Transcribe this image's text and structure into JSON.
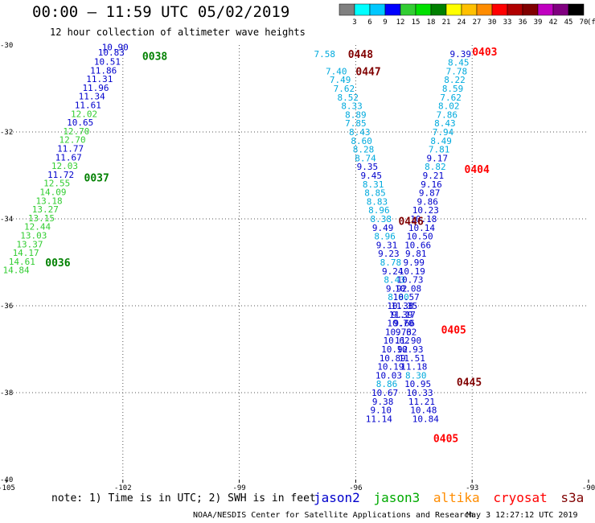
{
  "title": "00:00 – 11:59 UTC 05/02/2019",
  "subtitle": "12 hour collection of altimeter wave heights",
  "note": "note:  1) Time is in UTC; 2) SWH is in feet",
  "credit": "NOAA/NESDIS Center for Satellite Applications and Research",
  "timestamp": "May  3 12:27:12 UTC 2019",
  "colorscale": {
    "ticks": [
      "3",
      "6",
      "9",
      "12",
      "15",
      "18",
      "21",
      "24",
      "27",
      "30",
      "33",
      "36",
      "39",
      "42",
      "45",
      "70"
    ],
    "unit": "(ft)",
    "colors": [
      "#808080",
      "#00ffff",
      "#00c8ff",
      "#0000ff",
      "#32cd32",
      "#00e000",
      "#008000",
      "#ffff00",
      "#ffc000",
      "#ff8c00",
      "#ff0000",
      "#b00000",
      "#800000",
      "#c000c0",
      "#800080",
      "#000000"
    ]
  },
  "satellites": [
    {
      "name": "jason2",
      "color": "#0000cc"
    },
    {
      "name": "jason3",
      "color": "#00aa00"
    },
    {
      "name": "altika",
      "color": "#ff8c00"
    },
    {
      "name": "cryosat",
      "color": "#ff0000"
    },
    {
      "name": "s3a",
      "color": "#800000"
    }
  ],
  "chart_data": {
    "type": "scatter",
    "xlim": [
      -105,
      -90
    ],
    "ylim": [
      -40,
      -30
    ],
    "x_ticks": [
      -105,
      -102,
      -99,
      -96,
      -93,
      -90
    ],
    "y_ticks": [
      -30,
      -32,
      -34,
      -36,
      -38,
      -40
    ],
    "x_tick_labels": [
      "-105",
      "-102",
      "-99",
      "-96",
      "-93",
      "-90"
    ],
    "y_tick_labels": [
      "-30",
      "-32",
      "-34",
      "-36",
      "-38",
      "-40"
    ],
    "grid": true,
    "time_labels": [
      {
        "text": "0038",
        "lon": -101.5,
        "lat": -30.25,
        "color": "#008000"
      },
      {
        "text": "0037",
        "lon": -103.0,
        "lat": -33.05,
        "color": "#008000"
      },
      {
        "text": "0036",
        "lon": -104.0,
        "lat": -35.0,
        "color": "#008000"
      },
      {
        "text": "0448",
        "lon": -96.2,
        "lat": -30.2,
        "color": "#800000"
      },
      {
        "text": "0447",
        "lon": -96.0,
        "lat": -30.6,
        "color": "#800000"
      },
      {
        "text": "0446",
        "lon": -94.9,
        "lat": -34.05,
        "color": "#800000"
      },
      {
        "text": "0445",
        "lon": -93.4,
        "lat": -37.75,
        "color": "#800000"
      },
      {
        "text": "0403",
        "lon": -93.0,
        "lat": -30.15,
        "color": "#ff0000"
      },
      {
        "text": "0404",
        "lon": -93.2,
        "lat": -32.85,
        "color": "#ff0000"
      },
      {
        "text": "0405",
        "lon": -93.8,
        "lat": -36.55,
        "color": "#ff0000"
      },
      {
        "text": "0405",
        "lon": -94.0,
        "lat": -39.05,
        "color": "#ff0000"
      }
    ],
    "series": [
      {
        "name": "jason3",
        "points": [
          {
            "lon": -102.2,
            "lat": -30.05,
            "v": "10.90",
            "color": "#0000cc"
          },
          {
            "lon": -102.3,
            "lat": -30.17,
            "v": "10.83",
            "color": "#0000cc"
          },
          {
            "lon": -102.4,
            "lat": -30.38,
            "v": "10.51",
            "color": "#0000cc"
          },
          {
            "lon": -102.5,
            "lat": -30.58,
            "v": "11.86",
            "color": "#0000cc"
          },
          {
            "lon": -102.6,
            "lat": -30.78,
            "v": "11.31",
            "color": "#0000cc"
          },
          {
            "lon": -102.7,
            "lat": -30.98,
            "v": "11.96",
            "color": "#0000cc"
          },
          {
            "lon": -102.8,
            "lat": -31.18,
            "v": "11.34",
            "color": "#0000cc"
          },
          {
            "lon": -102.9,
            "lat": -31.38,
            "v": "11.61",
            "color": "#0000cc"
          },
          {
            "lon": -103.0,
            "lat": -31.58,
            "v": "12.02",
            "color": "#32cd32"
          },
          {
            "lon": -103.1,
            "lat": -31.78,
            "v": "10.65",
            "color": "#0000cc"
          },
          {
            "lon": -103.2,
            "lat": -31.98,
            "v": "12.70",
            "color": "#32cd32"
          },
          {
            "lon": -103.3,
            "lat": -32.18,
            "v": "12.70",
            "color": "#32cd32"
          },
          {
            "lon": -103.35,
            "lat": -32.38,
            "v": "11.77",
            "color": "#0000cc"
          },
          {
            "lon": -103.4,
            "lat": -32.58,
            "v": "11.67",
            "color": "#0000cc"
          },
          {
            "lon": -103.5,
            "lat": -32.78,
            "v": "12.03",
            "color": "#32cd32"
          },
          {
            "lon": -103.6,
            "lat": -32.98,
            "v": "11.72",
            "color": "#0000cc"
          },
          {
            "lon": -103.7,
            "lat": -33.18,
            "v": "12.55",
            "color": "#32cd32"
          },
          {
            "lon": -103.8,
            "lat": -33.38,
            "v": "14.09",
            "color": "#32cd32"
          },
          {
            "lon": -103.9,
            "lat": -33.58,
            "v": "13.18",
            "color": "#32cd32"
          },
          {
            "lon": -104.0,
            "lat": -33.78,
            "v": "13.27",
            "color": "#32cd32"
          },
          {
            "lon": -104.1,
            "lat": -33.98,
            "v": "13.15",
            "color": "#32cd32"
          },
          {
            "lon": -104.2,
            "lat": -34.18,
            "v": "12.44",
            "color": "#32cd32"
          },
          {
            "lon": -104.3,
            "lat": -34.38,
            "v": "13.03",
            "color": "#32cd32"
          },
          {
            "lon": -104.4,
            "lat": -34.58,
            "v": "13.37",
            "color": "#32cd32"
          },
          {
            "lon": -104.5,
            "lat": -34.78,
            "v": "14.17",
            "color": "#32cd32"
          },
          {
            "lon": -104.6,
            "lat": -34.98,
            "v": "14.61",
            "color": "#32cd32"
          },
          {
            "lon": -104.75,
            "lat": -35.18,
            "v": "14.84",
            "color": "#32cd32"
          }
        ]
      },
      {
        "name": "s3a",
        "points": [
          {
            "lon": -96.8,
            "lat": -30.2,
            "v": "7.58",
            "color": "#00aadd"
          },
          {
            "lon": -96.5,
            "lat": -30.6,
            "v": "7.40",
            "color": "#00aadd"
          },
          {
            "lon": -96.4,
            "lat": -30.8,
            "v": "7.49",
            "color": "#00aadd"
          },
          {
            "lon": -96.3,
            "lat": -31.0,
            "v": "7.62",
            "color": "#00aadd"
          },
          {
            "lon": -96.2,
            "lat": -31.2,
            "v": "8.52",
            "color": "#00aadd"
          },
          {
            "lon": -96.1,
            "lat": -31.4,
            "v": "8.33",
            "color": "#00aadd"
          },
          {
            "lon": -96.0,
            "lat": -31.6,
            "v": "8.89",
            "color": "#00aadd"
          },
          {
            "lon": -96.0,
            "lat": -31.8,
            "v": "7.85",
            "color": "#00aadd"
          },
          {
            "lon": -95.9,
            "lat": -32.0,
            "v": "8.43",
            "color": "#00aadd"
          },
          {
            "lon": -95.85,
            "lat": -32.2,
            "v": "8.60",
            "color": "#00aadd"
          },
          {
            "lon": -95.8,
            "lat": -32.4,
            "v": "8.28",
            "color": "#00aadd"
          },
          {
            "lon": -95.75,
            "lat": -32.6,
            "v": "8.74",
            "color": "#00aadd"
          },
          {
            "lon": -95.7,
            "lat": -32.8,
            "v": "9.35",
            "color": "#0000cc"
          },
          {
            "lon": -95.6,
            "lat": -33.0,
            "v": "9.45",
            "color": "#0000cc"
          },
          {
            "lon": -95.55,
            "lat": -33.2,
            "v": "8.31",
            "color": "#00aadd"
          },
          {
            "lon": -95.5,
            "lat": -33.4,
            "v": "8.85",
            "color": "#00aadd"
          },
          {
            "lon": -95.45,
            "lat": -33.6,
            "v": "8.83",
            "color": "#00aadd"
          },
          {
            "lon": -95.4,
            "lat": -33.8,
            "v": "8.96",
            "color": "#00aadd"
          },
          {
            "lon": -95.35,
            "lat": -34.0,
            "v": "8.38",
            "color": "#00aadd"
          },
          {
            "lon": -95.3,
            "lat": -34.2,
            "v": "9.49",
            "color": "#0000cc"
          },
          {
            "lon": -95.25,
            "lat": -34.4,
            "v": "8.96",
            "color": "#00aadd"
          },
          {
            "lon": -95.2,
            "lat": -34.6,
            "v": "9.31",
            "color": "#0000cc"
          },
          {
            "lon": -95.15,
            "lat": -34.8,
            "v": "9.23",
            "color": "#0000cc"
          },
          {
            "lon": -95.1,
            "lat": -35.0,
            "v": "8.78",
            "color": "#00aadd"
          },
          {
            "lon": -95.05,
            "lat": -35.2,
            "v": "9.24",
            "color": "#0000cc"
          },
          {
            "lon": -95.0,
            "lat": -35.4,
            "v": "8.43",
            "color": "#00aadd"
          },
          {
            "lon": -94.95,
            "lat": -35.6,
            "v": "9.92",
            "color": "#0000cc"
          },
          {
            "lon": -94.9,
            "lat": -35.8,
            "v": "8.80",
            "color": "#00aadd"
          },
          {
            "lon": -94.85,
            "lat": -36.0,
            "v": "10.38",
            "color": "#0000cc"
          },
          {
            "lon": -94.8,
            "lat": -36.2,
            "v": "9.39",
            "color": "#0000cc"
          },
          {
            "lon": -94.75,
            "lat": -36.4,
            "v": "9.66",
            "color": "#0000cc"
          },
          {
            "lon": -94.7,
            "lat": -36.6,
            "v": "9.62",
            "color": "#0000cc"
          },
          {
            "lon": -94.65,
            "lat": -36.8,
            "v": "11.90",
            "color": "#0000cc"
          },
          {
            "lon": -94.6,
            "lat": -37.0,
            "v": "10.93",
            "color": "#0000cc"
          },
          {
            "lon": -94.55,
            "lat": -37.2,
            "v": "11.51",
            "color": "#0000cc"
          },
          {
            "lon": -94.5,
            "lat": -37.4,
            "v": "11.18",
            "color": "#0000cc"
          },
          {
            "lon": -94.45,
            "lat": -37.6,
            "v": "8.30",
            "color": "#00aadd"
          },
          {
            "lon": -94.4,
            "lat": -37.8,
            "v": "10.95",
            "color": "#0000cc"
          },
          {
            "lon": -94.35,
            "lat": -38.0,
            "v": "10.33",
            "color": "#0000cc"
          },
          {
            "lon": -94.3,
            "lat": -38.2,
            "v": "11.21",
            "color": "#0000cc"
          },
          {
            "lon": -94.25,
            "lat": -38.4,
            "v": "10.48",
            "color": "#0000cc"
          },
          {
            "lon": -94.2,
            "lat": -38.6,
            "v": "10.84",
            "color": "#0000cc"
          }
        ]
      },
      {
        "name": "cryosat",
        "points": [
          {
            "lon": -93.3,
            "lat": -30.2,
            "v": "9.39",
            "color": "#0000cc"
          },
          {
            "lon": -93.35,
            "lat": -30.4,
            "v": "8.45",
            "color": "#00aadd"
          },
          {
            "lon": -93.4,
            "lat": -30.6,
            "v": "7.78",
            "color": "#00aadd"
          },
          {
            "lon": -93.45,
            "lat": -30.8,
            "v": "8.22",
            "color": "#00aadd"
          },
          {
            "lon": -93.5,
            "lat": -31.0,
            "v": "8.59",
            "color": "#00aadd"
          },
          {
            "lon": -93.55,
            "lat": -31.2,
            "v": "7.62",
            "color": "#00aadd"
          },
          {
            "lon": -93.6,
            "lat": -31.4,
            "v": "8.02",
            "color": "#00aadd"
          },
          {
            "lon": -93.65,
            "lat": -31.6,
            "v": "7.86",
            "color": "#00aadd"
          },
          {
            "lon": -93.7,
            "lat": -31.8,
            "v": "8.43",
            "color": "#00aadd"
          },
          {
            "lon": -93.75,
            "lat": -32.0,
            "v": "7.94",
            "color": "#00aadd"
          },
          {
            "lon": -93.8,
            "lat": -32.2,
            "v": "8.49",
            "color": "#00aadd"
          },
          {
            "lon": -93.85,
            "lat": -32.4,
            "v": "7.81",
            "color": "#00aadd"
          },
          {
            "lon": -93.9,
            "lat": -32.6,
            "v": "9.17",
            "color": "#0000cc"
          },
          {
            "lon": -93.95,
            "lat": -32.8,
            "v": "8.82",
            "color": "#00aadd"
          },
          {
            "lon": -94.0,
            "lat": -33.0,
            "v": "9.21",
            "color": "#0000cc"
          },
          {
            "lon": -94.05,
            "lat": -33.2,
            "v": "9.16",
            "color": "#0000cc"
          },
          {
            "lon": -94.1,
            "lat": -33.4,
            "v": "9.87",
            "color": "#0000cc"
          },
          {
            "lon": -94.15,
            "lat": -33.6,
            "v": "9.86",
            "color": "#0000cc"
          },
          {
            "lon": -94.2,
            "lat": -33.8,
            "v": "10.23",
            "color": "#0000cc"
          },
          {
            "lon": -94.25,
            "lat": -34.0,
            "v": "10.18",
            "color": "#0000cc"
          },
          {
            "lon": -94.3,
            "lat": -34.2,
            "v": "10.14",
            "color": "#0000cc"
          },
          {
            "lon": -94.35,
            "lat": -34.4,
            "v": "10.50",
            "color": "#0000cc"
          },
          {
            "lon": -94.4,
            "lat": -34.6,
            "v": "10.66",
            "color": "#0000cc"
          },
          {
            "lon": -94.45,
            "lat": -34.8,
            "v": "9.81",
            "color": "#0000cc"
          },
          {
            "lon": -94.5,
            "lat": -35.0,
            "v": "9.99",
            "color": "#0000cc"
          },
          {
            "lon": -94.55,
            "lat": -35.2,
            "v": "10.19",
            "color": "#0000cc"
          },
          {
            "lon": -94.6,
            "lat": -35.4,
            "v": "10.73",
            "color": "#0000cc"
          },
          {
            "lon": -94.65,
            "lat": -35.6,
            "v": "10.08",
            "color": "#0000cc"
          },
          {
            "lon": -94.7,
            "lat": -35.8,
            "v": "10.57",
            "color": "#0000cc"
          },
          {
            "lon": -94.75,
            "lat": -36.0,
            "v": "11.35",
            "color": "#0000cc"
          },
          {
            "lon": -94.8,
            "lat": -36.2,
            "v": "11.17",
            "color": "#0000cc"
          },
          {
            "lon": -94.85,
            "lat": -36.4,
            "v": "10.70",
            "color": "#0000cc"
          },
          {
            "lon": -94.9,
            "lat": -36.6,
            "v": "10.73",
            "color": "#0000cc"
          },
          {
            "lon": -94.95,
            "lat": -36.8,
            "v": "10.62",
            "color": "#0000cc"
          },
          {
            "lon": -95.0,
            "lat": -37.0,
            "v": "10.92",
            "color": "#0000cc"
          },
          {
            "lon": -95.05,
            "lat": -37.2,
            "v": "10.89",
            "color": "#0000cc"
          },
          {
            "lon": -95.1,
            "lat": -37.4,
            "v": "10.19",
            "color": "#0000cc"
          },
          {
            "lon": -95.15,
            "lat": -37.6,
            "v": "10.03",
            "color": "#0000cc"
          },
          {
            "lon": -95.2,
            "lat": -37.8,
            "v": "8.86",
            "color": "#00aadd"
          },
          {
            "lon": -95.25,
            "lat": -38.0,
            "v": "10.67",
            "color": "#0000cc"
          },
          {
            "lon": -95.3,
            "lat": -38.2,
            "v": "9.38",
            "color": "#0000cc"
          },
          {
            "lon": -95.35,
            "lat": -38.4,
            "v": "9.10",
            "color": "#0000cc"
          },
          {
            "lon": -95.4,
            "lat": -38.6,
            "v": "11.14",
            "color": "#0000cc"
          }
        ]
      }
    ]
  }
}
